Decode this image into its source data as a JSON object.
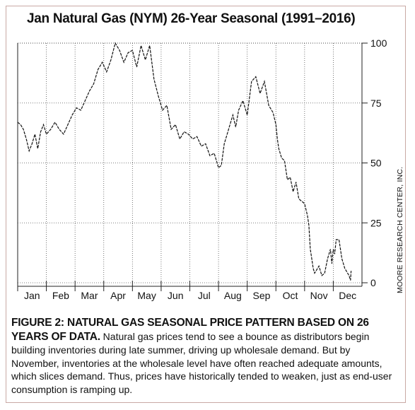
{
  "chart_data": {
    "type": "line",
    "title": "Jan Natural Gas (NYM) 26-Year Seasonal (1991–2016)",
    "xlabel": "",
    "ylabel": "",
    "ylim": [
      0,
      100
    ],
    "y_ticks": [
      0,
      25,
      50,
      75,
      100
    ],
    "categories": [
      "Jan",
      "Feb",
      "Mar",
      "Apr",
      "May",
      "Jun",
      "Jul",
      "Aug",
      "Sep",
      "Oct",
      "Nov",
      "Dec"
    ],
    "x_unit": "month (fractional, 0 = start of Jan)",
    "grid": true,
    "legend": "none",
    "series": [
      {
        "x": [
          0.0,
          0.1,
          0.2,
          0.3,
          0.4,
          0.5,
          0.6,
          0.7,
          0.8,
          0.9,
          1.0,
          1.15,
          1.3,
          1.45,
          1.6,
          1.75,
          1.9,
          2.05,
          2.2,
          2.35,
          2.5,
          2.65,
          2.8,
          2.95,
          3.1,
          3.25,
          3.4,
          3.55,
          3.7,
          3.85,
          4.0,
          4.15,
          4.3,
          4.45,
          4.6,
          4.75,
          4.9,
          5.05,
          5.2,
          5.35,
          5.5,
          5.65,
          5.8,
          5.95,
          6.1,
          6.25,
          6.4,
          6.55,
          6.7,
          6.85,
          7.0,
          7.1,
          7.2,
          7.3,
          7.4,
          7.5,
          7.6,
          7.7,
          7.85,
          8.0,
          8.15,
          8.3,
          8.45,
          8.6,
          8.75,
          8.9,
          9.0,
          9.05,
          9.1,
          9.2,
          9.3,
          9.4,
          9.5,
          9.6,
          9.7,
          9.8,
          9.9,
          10.0,
          10.1,
          10.15,
          10.2,
          10.25,
          10.3,
          10.35,
          10.4,
          10.5,
          10.6,
          10.7,
          10.8,
          10.9,
          10.95,
          11.0,
          11.05,
          11.1,
          11.2,
          11.3,
          11.4,
          11.5,
          11.55,
          11.6,
          11.62
        ],
        "values": [
          67,
          66,
          64,
          60,
          55,
          58,
          62,
          56,
          63,
          66,
          62,
          64,
          67,
          64,
          62,
          66,
          70,
          73,
          72,
          76,
          80,
          83,
          89,
          92,
          88,
          93,
          100,
          97,
          92,
          96,
          97,
          90,
          99,
          93,
          99,
          85,
          78,
          72,
          74,
          64,
          66,
          60,
          63,
          62,
          60,
          61,
          57,
          58,
          53,
          54,
          48,
          49,
          58,
          62,
          66,
          70,
          65,
          72,
          76,
          70,
          84,
          86,
          79,
          84,
          74,
          71,
          66,
          60,
          56,
          52,
          51,
          43,
          44,
          38,
          42,
          35,
          34,
          33,
          28,
          24,
          14,
          10,
          6,
          4,
          5,
          7,
          3,
          4,
          10,
          14,
          8,
          14,
          12,
          18,
          18,
          10,
          6,
          4,
          3,
          1,
          5
        ]
      }
    ]
  },
  "caption": {
    "title": "FIGURE 2: NATURAL GAS SEASONAL PRICE PATTERN BASED ON 26 YEARS OF DATA.",
    "body": " Natural gas prices tend to see a bounce as distributors begin building inventories during late summer, driving up wholesale demand. But by November, inventories at the wholesale level have often reached adequate amounts, which slices demand. Thus, prices have historically tended to weaken, just as end-user consumption is ramping up."
  },
  "source": "MOORE RESEARCH CENTER, INC.",
  "colors": {
    "line": "#111111",
    "grid": "#444444",
    "frame_border": "#c9a9a4"
  }
}
